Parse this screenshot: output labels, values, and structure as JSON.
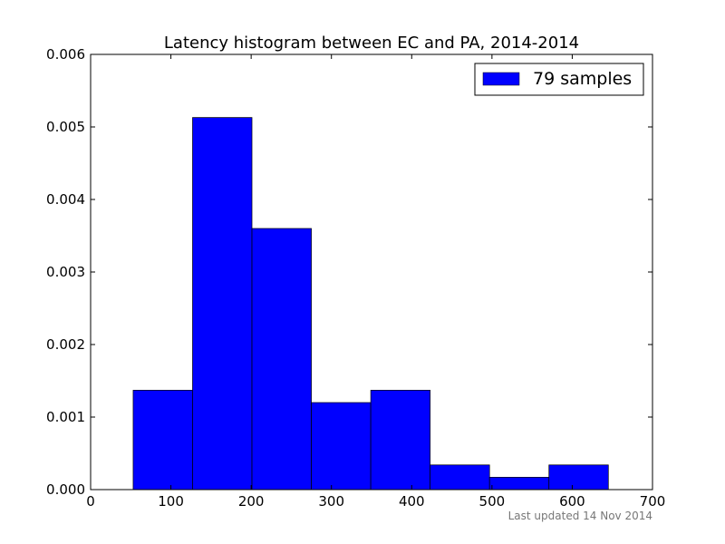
{
  "chart_data": {
    "type": "bar",
    "title": "Latency histogram between EC and PA, 2014-2014",
    "xlabel": "",
    "ylabel": "",
    "xlim": [
      0,
      700
    ],
    "ylim": [
      0,
      0.006
    ],
    "x_ticks": [
      "0",
      "100",
      "200",
      "300",
      "400",
      "500",
      "600",
      "700"
    ],
    "y_ticks": [
      "0.000",
      "0.001",
      "0.002",
      "0.003",
      "0.004",
      "0.005",
      "0.006"
    ],
    "bin_edges": [
      53,
      127,
      201,
      275,
      349,
      423,
      497,
      571,
      645
    ],
    "values": [
      0.00137,
      0.00513,
      0.0036,
      0.0012,
      0.00137,
      0.00034,
      0.00017,
      0.00034
    ],
    "series": [
      {
        "name": "79 samples",
        "values": [
          0.00137,
          0.00513,
          0.0036,
          0.0012,
          0.00137,
          0.00034,
          0.00017,
          0.00034
        ]
      }
    ],
    "bar_color": "#0000ff",
    "grid": false,
    "legend_position": "top-right"
  },
  "footer": {
    "updated": "Last updated 14 Nov 2014"
  }
}
